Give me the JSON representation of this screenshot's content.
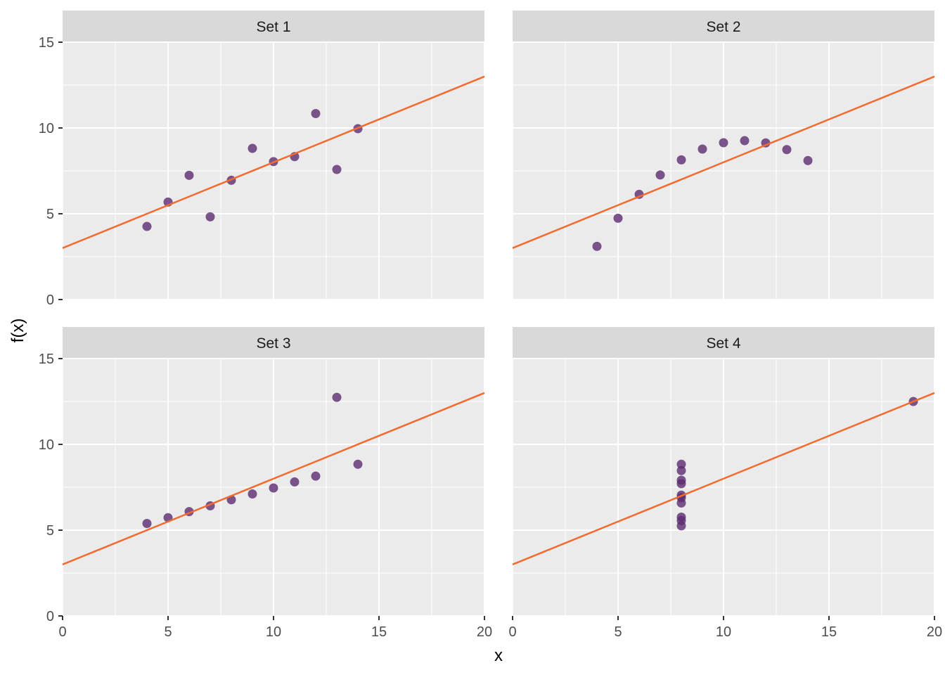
{
  "chart_data": {
    "type": "scatter",
    "xlabel": "x",
    "ylabel": "f(x)",
    "xlim": [
      0,
      20
    ],
    "ylim": [
      0,
      15
    ],
    "x_ticks": [
      0,
      5,
      10,
      15,
      20
    ],
    "y_ticks": [
      0,
      5,
      10,
      15
    ],
    "grid": true,
    "point_color": "#5B2C6F",
    "line_color": "#F26B2E",
    "fit_line": {
      "intercept": 3,
      "slope": 0.5
    },
    "panels": [
      {
        "title": "Set 1",
        "x": [
          10,
          8,
          13,
          9,
          11,
          14,
          6,
          4,
          12,
          7,
          5
        ],
        "y": [
          8.04,
          6.95,
          7.58,
          8.81,
          8.33,
          9.96,
          7.24,
          4.26,
          10.84,
          4.82,
          5.68
        ]
      },
      {
        "title": "Set 2",
        "x": [
          10,
          8,
          13,
          9,
          11,
          14,
          6,
          4,
          12,
          7,
          5
        ],
        "y": [
          9.14,
          8.14,
          8.74,
          8.77,
          9.26,
          8.1,
          6.13,
          3.1,
          9.13,
          7.26,
          4.74
        ]
      },
      {
        "title": "Set 3",
        "x": [
          10,
          8,
          13,
          9,
          11,
          14,
          6,
          4,
          12,
          7,
          5
        ],
        "y": [
          7.46,
          6.77,
          12.74,
          7.11,
          7.81,
          8.84,
          6.08,
          5.39,
          8.15,
          6.42,
          5.73
        ]
      },
      {
        "title": "Set 4",
        "x": [
          8,
          8,
          8,
          8,
          8,
          8,
          8,
          19,
          8,
          8,
          8
        ],
        "y": [
          6.58,
          5.76,
          7.71,
          8.84,
          8.47,
          7.04,
          5.25,
          12.5,
          5.56,
          7.91,
          6.89
        ]
      }
    ]
  }
}
